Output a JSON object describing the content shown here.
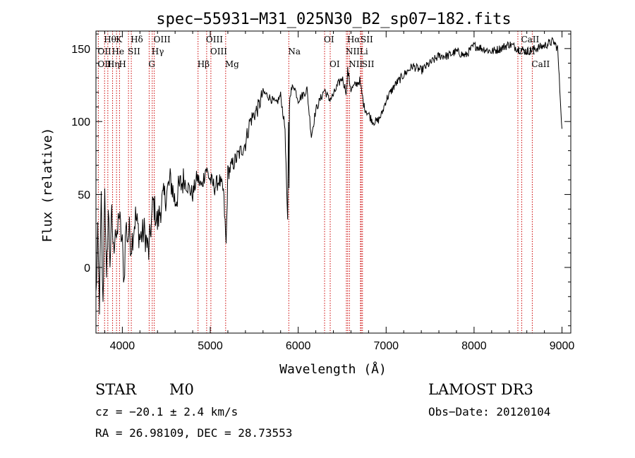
{
  "chart_data": {
    "type": "line",
    "title": "spec−55931−M31_025N30_B2_sp07−182.fits",
    "xlabel": "Wavelength (Å)",
    "ylabel": "Flux (relative)",
    "xlim": [
      3700,
      9100
    ],
    "ylim": [
      -45,
      162
    ],
    "xticks": [
      4000,
      5000,
      6000,
      7000,
      8000,
      9000
    ],
    "yticks": [
      0,
      50,
      100,
      150
    ],
    "series": [
      {
        "name": "spectrum",
        "x": [
          3700,
          3720,
          3740,
          3760,
          3780,
          3800,
          3820,
          3840,
          3860,
          3880,
          3900,
          3920,
          3940,
          3960,
          3980,
          4000,
          4020,
          4040,
          4060,
          4080,
          4100,
          4150,
          4200,
          4250,
          4300,
          4350,
          4400,
          4450,
          4500,
          4550,
          4600,
          4650,
          4700,
          4750,
          4800,
          4850,
          4900,
          4950,
          5000,
          5050,
          5100,
          5150,
          5180,
          5200,
          5250,
          5300,
          5350,
          5400,
          5450,
          5500,
          5550,
          5600,
          5650,
          5700,
          5750,
          5800,
          5850,
          5880,
          5890,
          5896,
          5900,
          5910,
          5950,
          6000,
          6050,
          6100,
          6150,
          6200,
          6250,
          6300,
          6350,
          6400,
          6450,
          6500,
          6550,
          6563,
          6600,
          6650,
          6700,
          6750,
          6800,
          6850,
          6900,
          6950,
          7000,
          7100,
          7200,
          7300,
          7400,
          7500,
          7600,
          7700,
          7800,
          7900,
          8000,
          8100,
          8200,
          8300,
          8400,
          8500,
          8600,
          8700,
          8800,
          8900,
          8950,
          9000
        ],
        "values": [
          -20,
          20,
          -25,
          45,
          -30,
          60,
          -15,
          40,
          5,
          35,
          10,
          30,
          15,
          40,
          25,
          15,
          -10,
          30,
          20,
          25,
          15,
          35,
          20,
          25,
          10,
          45,
          30,
          45,
          50,
          60,
          45,
          55,
          60,
          55,
          50,
          62,
          55,
          68,
          60,
          55,
          60,
          52,
          15,
          65,
          70,
          75,
          80,
          85,
          100,
          105,
          110,
          120,
          118,
          115,
          112,
          118,
          95,
          30,
          98,
          55,
          110,
          120,
          125,
          115,
          118,
          122,
          90,
          108,
          115,
          122,
          115,
          118,
          125,
          130,
          120,
          135,
          122,
          125,
          128,
          110,
          105,
          100,
          100,
          105,
          115,
          125,
          132,
          138,
          135,
          140,
          145,
          145,
          148,
          145,
          152,
          150,
          148,
          150,
          153,
          150,
          148,
          150,
          152,
          155,
          150,
          95
        ]
      }
    ],
    "lines_top": [
      {
        "name": "Hθ",
        "x": 3798
      },
      {
        "name": "K",
        "x": 3934
      },
      {
        "name": "Hδ",
        "x": 4102
      },
      {
        "name": "OIII",
        "x": 4363
      },
      {
        "name": "OIII",
        "x": 4959
      },
      {
        "name": "OI",
        "x": 6300
      },
      {
        "name": "Hα",
        "x": 6563
      },
      {
        "name": "SII",
        "x": 6717
      },
      {
        "name": "CaII",
        "x": 8542
      }
    ],
    "lines_mid": [
      {
        "name": "OII",
        "x": 3727
      },
      {
        "name": "He",
        "x": 3889
      },
      {
        "name": "SII",
        "x": 4070
      },
      {
        "name": "Hγ",
        "x": 4340
      },
      {
        "name": "OIII",
        "x": 5007
      },
      {
        "name": "Na",
        "x": 5893
      },
      {
        "name": "NII",
        "x": 6548
      },
      {
        "name": "Li",
        "x": 6708
      },
      {
        "name": "CaII",
        "x": 8498
      }
    ],
    "lines_low": [
      {
        "name": "OII",
        "x": 3727
      },
      {
        "name": "Hη",
        "x": 3835
      },
      {
        "name": "H",
        "x": 3968
      },
      {
        "name": "G",
        "x": 4305
      },
      {
        "name": "Hβ",
        "x": 4861
      },
      {
        "name": "Mg",
        "x": 5175
      },
      {
        "name": "OI",
        "x": 6364
      },
      {
        "name": "NII",
        "x": 6583
      },
      {
        "name": "SII",
        "x": 6731
      },
      {
        "name": "CaII",
        "x": 8662
      }
    ],
    "colors": {
      "line_marker": "#cc0000",
      "spectrum": "#000000"
    }
  },
  "info": {
    "object_class": "STAR",
    "subclass": "M0",
    "survey": "LAMOST DR3",
    "cz": "cz = −20.1 ± 2.4 km/s",
    "obs_date": "Obs−Date: 20120104",
    "coords": "RA =  26.98109, DEC =  28.73553"
  }
}
